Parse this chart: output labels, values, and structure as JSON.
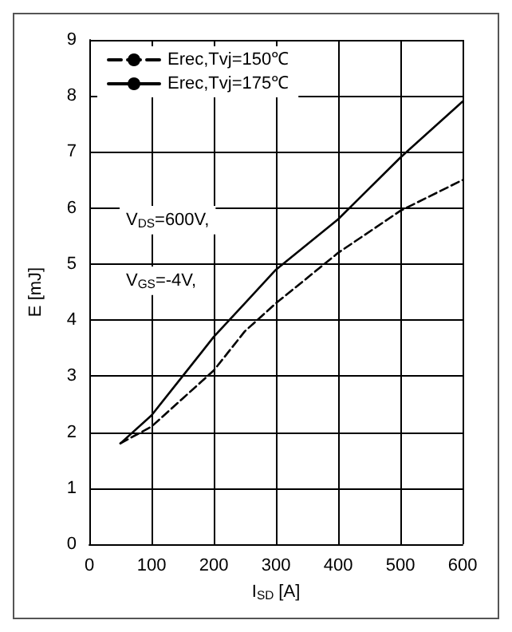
{
  "chart_data": {
    "type": "line",
    "xlabel": "I$_{SD}$ [A]",
    "ylabel": "E [mJ]",
    "xlim": [
      0,
      600
    ],
    "xticks": [
      0,
      100,
      200,
      300,
      400,
      500,
      600
    ],
    "ylim": [
      0,
      9
    ],
    "yticks": [
      0,
      1,
      2,
      3,
      4,
      5,
      6,
      7,
      8,
      9
    ],
    "grid": true,
    "legend": "top left",
    "marker": "none",
    "annotations": [
      "V$_{DS}$=600V,",
      "V$_{GS}$=-4V,"
    ],
    "series": [
      {
        "name": "Erec,Tvj=150℃",
        "color": "#000000",
        "line_style": "dashed",
        "x": [
          50,
          100,
          150,
          200,
          250,
          300,
          400,
          500,
          600
        ],
        "values": [
          1.8,
          2.1,
          2.6,
          3.1,
          3.8,
          4.3,
          5.2,
          5.95,
          6.5
        ]
      },
      {
        "name": "Erec,Tvj=175℃",
        "color": "#000000",
        "line_style": "solid",
        "x": [
          50,
          100,
          150,
          200,
          250,
          300,
          400,
          500,
          600
        ],
        "values": [
          1.8,
          2.3,
          3.0,
          3.7,
          4.3,
          4.9,
          5.8,
          6.9,
          7.9
        ]
      }
    ]
  }
}
